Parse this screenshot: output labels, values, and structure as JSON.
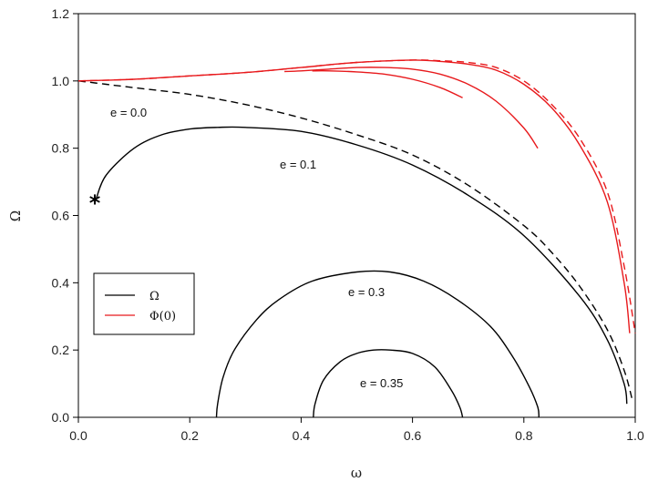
{
  "chart_data": {
    "type": "line",
    "xlabel": "ω",
    "ylabel": "Ω",
    "xlim": [
      0,
      1
    ],
    "ylim": [
      0,
      1.2
    ],
    "x_ticks": [
      "0.0",
      "0.2",
      "0.4",
      "0.6",
      "0.8",
      "1.0"
    ],
    "y_ticks": [
      "0.0",
      "0.2",
      "0.4",
      "0.6",
      "0.8",
      "1.0",
      "1.2"
    ],
    "grid": false,
    "legend": {
      "placement": "middle-left",
      "entries": [
        {
          "label": "Ω",
          "color": "#000000"
        },
        {
          "label": "Φ(0)",
          "color": "#e8191c"
        }
      ]
    },
    "annotations": [
      "e = 0.0",
      "e = 0.1",
      "e = 0.3",
      "e = 0.35"
    ],
    "marker": {
      "symbol": "*",
      "x": 0.032,
      "y": 0.64
    },
    "colors": {
      "omega": "#000000",
      "phi": "#e8191c"
    },
    "series": [
      {
        "group": "Ω",
        "curve": "e = 0.0",
        "style": "dashed",
        "color": "#000000",
        "x": [
          0.0,
          0.05,
          0.1,
          0.2,
          0.3,
          0.4,
          0.5,
          0.6,
          0.7,
          0.8,
          0.85,
          0.9,
          0.95,
          0.98,
          0.995
        ],
        "y": [
          1.0,
          0.99,
          0.98,
          0.96,
          0.93,
          0.89,
          0.84,
          0.78,
          0.69,
          0.57,
          0.49,
          0.39,
          0.26,
          0.14,
          0.05
        ]
      },
      {
        "group": "Ω",
        "curve": "e = 0.1",
        "style": "solid",
        "color": "#000000",
        "x": [
          0.032,
          0.05,
          0.1,
          0.15,
          0.2,
          0.25,
          0.3,
          0.4,
          0.5,
          0.6,
          0.7,
          0.8,
          0.9,
          0.95,
          0.98,
          0.985
        ],
        "y": [
          0.65,
          0.72,
          0.8,
          0.84,
          0.857,
          0.862,
          0.862,
          0.85,
          0.81,
          0.75,
          0.66,
          0.54,
          0.36,
          0.23,
          0.1,
          0.04
        ]
      },
      {
        "group": "Ω",
        "curve": "e = 0.3",
        "style": "solid",
        "color": "#000000",
        "x": [
          0.248,
          0.25,
          0.26,
          0.28,
          0.32,
          0.36,
          0.42,
          0.5,
          0.56,
          0.62,
          0.68,
          0.74,
          0.78,
          0.81,
          0.825,
          0.827
        ],
        "y": [
          0.0,
          0.04,
          0.12,
          0.2,
          0.29,
          0.35,
          0.405,
          0.432,
          0.432,
          0.405,
          0.35,
          0.27,
          0.18,
          0.09,
          0.03,
          0.0
        ]
      },
      {
        "group": "Ω",
        "curve": "e = 0.35",
        "style": "solid",
        "color": "#000000",
        "x": [
          0.422,
          0.425,
          0.44,
          0.47,
          0.5,
          0.53,
          0.56,
          0.6,
          0.64,
          0.67,
          0.685,
          0.69
        ],
        "y": [
          0.0,
          0.04,
          0.11,
          0.165,
          0.19,
          0.2,
          0.2,
          0.19,
          0.15,
          0.08,
          0.03,
          0.0
        ]
      },
      {
        "group": "Φ(0)",
        "curve": "e = 0.0",
        "style": "dashed",
        "color": "#e8191c",
        "x": [
          0.0,
          0.1,
          0.2,
          0.3,
          0.4,
          0.5,
          0.6,
          0.65,
          0.7,
          0.75,
          0.8,
          0.85,
          0.9,
          0.95,
          0.98,
          1.0
        ],
        "y": [
          1.0,
          1.005,
          1.015,
          1.025,
          1.04,
          1.055,
          1.062,
          1.06,
          1.055,
          1.04,
          1.0,
          0.93,
          0.83,
          0.67,
          0.45,
          0.25
        ]
      },
      {
        "group": "Φ(0)",
        "curve": "e = 0.1",
        "style": "solid",
        "color": "#e8191c",
        "x": [
          0.0,
          0.1,
          0.2,
          0.3,
          0.4,
          0.5,
          0.6,
          0.65,
          0.7,
          0.75,
          0.8,
          0.85,
          0.9,
          0.95,
          0.98,
          0.99
        ],
        "y": [
          1.0,
          1.005,
          1.015,
          1.025,
          1.04,
          1.055,
          1.062,
          1.058,
          1.05,
          1.032,
          0.99,
          0.92,
          0.81,
          0.64,
          0.4,
          0.25
        ]
      },
      {
        "group": "Φ(0)",
        "curve": "e = 0.3",
        "style": "solid",
        "color": "#e8191c",
        "x": [
          0.37,
          0.4,
          0.45,
          0.5,
          0.55,
          0.6,
          0.65,
          0.7,
          0.75,
          0.8,
          0.825
        ],
        "y": [
          1.028,
          1.03,
          1.035,
          1.04,
          1.04,
          1.035,
          1.02,
          0.99,
          0.94,
          0.86,
          0.8
        ]
      },
      {
        "group": "Φ(0)",
        "curve": "e = 0.35",
        "style": "solid",
        "color": "#e8191c",
        "x": [
          0.42,
          0.45,
          0.5,
          0.55,
          0.6,
          0.65,
          0.69
        ],
        "y": [
          1.03,
          1.03,
          1.027,
          1.02,
          1.005,
          0.98,
          0.95
        ]
      }
    ]
  }
}
